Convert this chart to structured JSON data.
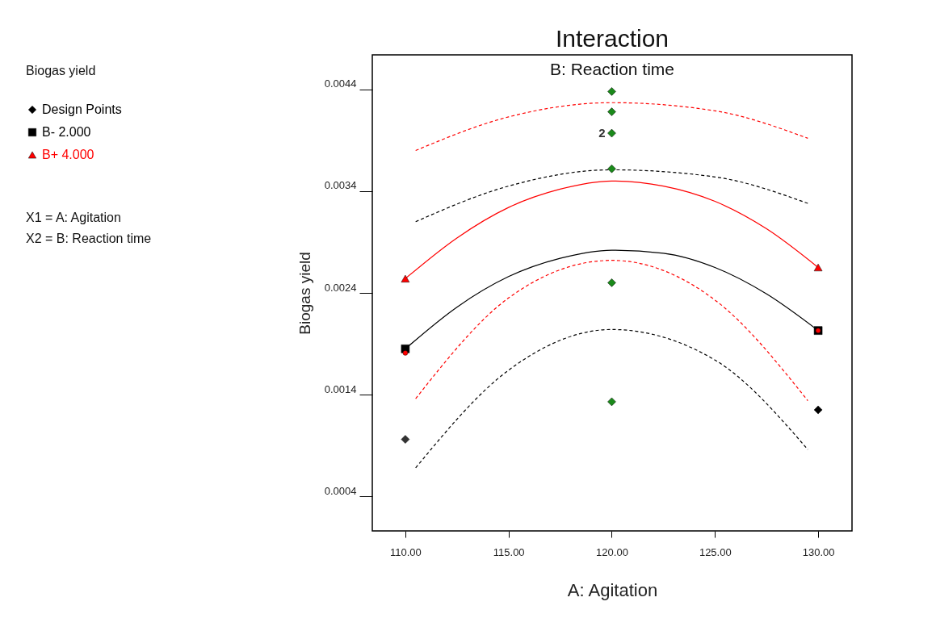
{
  "chart_data": {
    "type": "line",
    "title": "Interaction",
    "subtitle": "B: Reaction time",
    "xlabel": "A: Agitation",
    "ylabel": "Biogas yield",
    "xlim": [
      108.4,
      131.64
    ],
    "ylim": [
      6e-05,
      0.00474
    ],
    "xticks": [
      {
        "value": 110,
        "label": "110.00"
      },
      {
        "value": 115,
        "label": "115.00"
      },
      {
        "value": 120,
        "label": "120.00"
      },
      {
        "value": 125,
        "label": "125.00"
      },
      {
        "value": 130,
        "label": "130.00"
      }
    ],
    "yticks": [
      0.0004,
      0.0014,
      0.0024,
      0.0034,
      0.0044
    ],
    "grid": false,
    "legend": "top left",
    "annotations": [
      "Biogas yield",
      "X1 = A: Agitation",
      "X2 = B: Reaction time",
      {
        "text": "2",
        "x": 120,
        "y": 0.00397
      }
    ],
    "series": [
      {
        "name": "Design Points",
        "type": "scatter",
        "marker": "diamond",
        "color": "#000000",
        "x": [
          120,
          120,
          120,
          120,
          120,
          120,
          110,
          130
        ],
        "values": [
          0.00438,
          0.00418,
          0.00397,
          0.00362,
          0.0025,
          0.00133,
          0.00096,
          0.00125
        ],
        "colors": [
          "#1a8a1a",
          "#1a8a1a",
          "#1a8a1a",
          "#1a8a1a",
          "#1a8a1a",
          "#1a8a1a",
          "#333333",
          "#000000"
        ]
      },
      {
        "name": "B- 2.000",
        "type": "scatter",
        "marker": "square",
        "color": "#000000",
        "x": [
          110,
          130
        ],
        "values": [
          0.00185,
          0.00203
        ]
      },
      {
        "name": "B+ 4.000",
        "type": "scatter",
        "marker": "triangle",
        "color": "#ff0000",
        "x": [
          110,
          130
        ],
        "values": [
          0.00254,
          0.00265
        ]
      },
      {
        "type": "scatter",
        "marker": "circle",
        "color": "#ff0000",
        "x": [
          110,
          130
        ],
        "values": [
          0.00181,
          0.00203
        ]
      },
      {
        "marker": "none",
        "line_style": "solid",
        "color": "#000000",
        "x": [
          110,
          112.5,
          115,
          117.5,
          120,
          122.5,
          125,
          127.5,
          130
        ],
        "values": [
          0.00185,
          0.00226,
          0.00256,
          0.00274,
          0.00282,
          0.00279,
          0.00265,
          0.00239,
          0.00203
        ]
      },
      {
        "marker": "none",
        "line_style": "solid",
        "color": "#ff0000",
        "x": [
          110,
          112.5,
          115,
          117.5,
          120,
          122.5,
          125,
          127.5,
          130
        ],
        "values": [
          0.00254,
          0.00294,
          0.00324,
          0.00342,
          0.0035,
          0.00345,
          0.0033,
          0.00303,
          0.00265
        ]
      },
      {
        "marker": "none",
        "line_style": "dashed",
        "color": "#000000",
        "x": [
          110.5,
          115,
          120,
          125,
          129.5
        ],
        "values": [
          0.0031,
          0.00345,
          0.00361,
          0.00354,
          0.00328
        ]
      },
      {
        "marker": "none",
        "line_style": "dashed",
        "color": "#000000",
        "x": [
          110.5,
          115,
          120,
          125,
          129.5
        ],
        "values": [
          0.00068,
          0.00164,
          0.00204,
          0.00174,
          0.00086
        ]
      },
      {
        "marker": "none",
        "line_style": "dashed",
        "color": "#ff0000",
        "x": [
          110.5,
          115,
          120,
          125,
          129.5
        ],
        "values": [
          0.0038,
          0.00413,
          0.00427,
          0.00419,
          0.00392
        ]
      },
      {
        "marker": "none",
        "line_style": "dashed",
        "color": "#ff0000",
        "x": [
          110.5,
          115,
          120,
          125,
          129.5
        ],
        "values": [
          0.00136,
          0.00235,
          0.00272,
          0.00233,
          0.00134
        ]
      }
    ]
  }
}
